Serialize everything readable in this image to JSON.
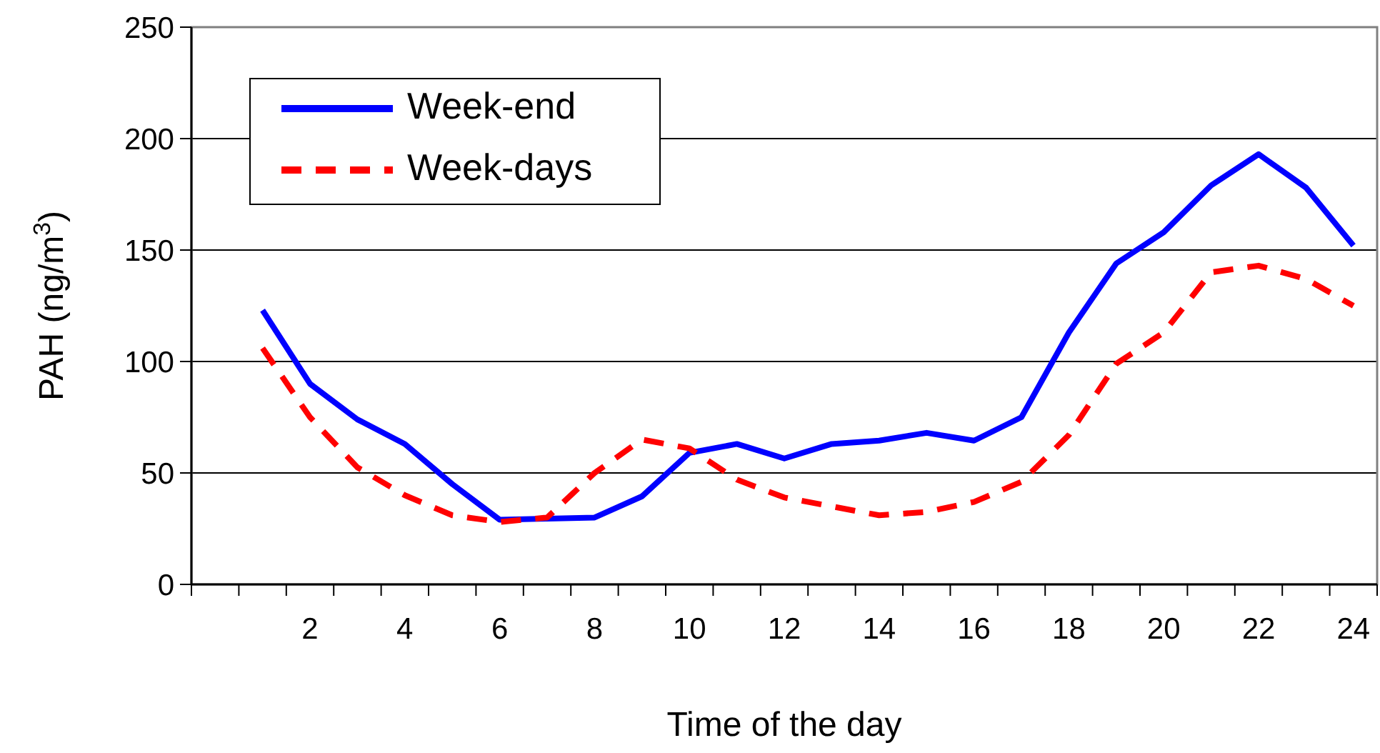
{
  "chart_data": {
    "type": "line",
    "xlabel": "Time of the day",
    "ylabel": "PAH (ng/m$^{3}$)",
    "x": [
      1,
      2,
      3,
      4,
      5,
      6,
      7,
      8,
      9,
      10,
      11,
      12,
      13,
      14,
      15,
      16,
      17,
      18,
      19,
      20,
      21,
      22,
      23,
      24
    ],
    "series": [
      {
        "name": "Week-end",
        "color": "#0000ff",
        "line_style": "solid",
        "values": [
          123,
          90,
          74,
          63,
          45,
          29,
          29.5,
          30,
          39.5,
          59,
          63,
          56.5,
          63,
          64.5,
          68,
          64.5,
          75,
          113,
          144,
          158,
          179,
          193,
          178,
          152
        ]
      },
      {
        "name": "Week-days",
        "color": "#ff0000",
        "line_style": "dashed",
        "values": [
          106,
          75,
          52.5,
          40,
          31,
          28,
          30,
          50,
          65,
          61,
          47,
          39,
          35,
          31,
          32.5,
          37,
          46,
          67,
          99,
          113,
          140,
          143,
          137,
          125
        ]
      }
    ],
    "xlim": [
      -0.5,
      24.5
    ],
    "xticks": [
      2,
      4,
      6,
      8,
      10,
      12,
      14,
      16,
      18,
      20,
      22,
      24,
      {
        "value": -0.5,
        "label": null
      },
      {
        "value": 0.5,
        "label": null
      },
      {
        "value": 1.5,
        "label": null
      },
      {
        "value": 2.5,
        "label": null
      },
      {
        "value": 3.5,
        "label": null
      },
      {
        "value": 4.5,
        "label": null
      },
      {
        "value": 5.5,
        "label": null
      },
      {
        "value": 6.5,
        "label": null
      },
      {
        "value": 7.5,
        "label": null
      },
      {
        "value": 8.5,
        "label": null
      },
      {
        "value": 9.5,
        "label": null
      },
      {
        "value": 10.5,
        "label": null
      },
      {
        "value": 11.5,
        "label": null
      },
      {
        "value": 12.5,
        "label": null
      },
      {
        "value": 13.5,
        "label": null
      },
      {
        "value": 14.5,
        "label": null
      },
      {
        "value": 15.5,
        "label": null
      },
      {
        "value": 16.5,
        "label": null
      },
      {
        "value": 17.5,
        "label": null
      },
      {
        "value": 18.5,
        "label": null
      },
      {
        "value": 19.5,
        "label": null
      },
      {
        "value": 20.5,
        "label": null
      },
      {
        "value": 21.5,
        "label": null
      },
      {
        "value": 22.5,
        "label": null
      },
      {
        "value": 23.5,
        "label": null
      },
      {
        "value": 24.5,
        "label": null
      }
    ],
    "ylim": [
      0,
      250
    ],
    "yticks": [
      0,
      50,
      100,
      150,
      200,
      250
    ],
    "grid": "y",
    "legend": "top left",
    "marker": "none"
  }
}
